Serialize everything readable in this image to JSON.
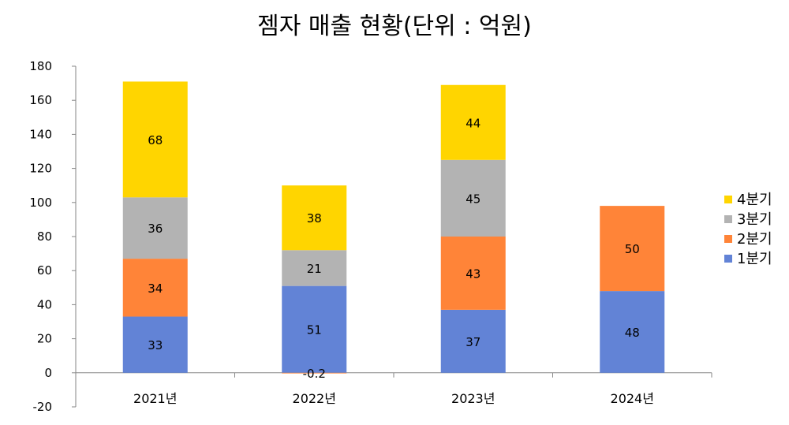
{
  "chart_data": {
    "type": "bar",
    "stacked": true,
    "title": "젬자 매출 현황(단위 : 억원)",
    "categories": [
      "2021년",
      "2022년",
      "2023년",
      "2024년"
    ],
    "series": [
      {
        "name": "1분기",
        "color": "#6283D6",
        "values": [
          33,
          51,
          37,
          48
        ]
      },
      {
        "name": "2분기",
        "color": "#FF8438",
        "values": [
          34,
          -0.2,
          43,
          50
        ]
      },
      {
        "name": "3분기",
        "color": "#B3B3B3",
        "values": [
          36,
          21,
          45,
          null
        ]
      },
      {
        "name": "4분기",
        "color": "#FFD500",
        "values": [
          68,
          38,
          44,
          null
        ]
      }
    ],
    "data_labels": [
      [
        "33",
        "51",
        "37",
        "48"
      ],
      [
        "34",
        "-0.2",
        "43",
        "50"
      ],
      [
        "36",
        "21",
        "45",
        ""
      ],
      [
        "68",
        "38",
        "44",
        ""
      ]
    ],
    "ylim": [
      -20,
      180
    ],
    "yticks": [
      "-20",
      "0",
      "20",
      "40",
      "60",
      "80",
      "100",
      "120",
      "140",
      "160",
      "180"
    ],
    "ytick_values": [
      -20,
      0,
      20,
      40,
      60,
      80,
      100,
      120,
      140,
      160,
      180
    ],
    "legend": {
      "position": "right",
      "order": [
        "4분기",
        "3분기",
        "2분기",
        "1분기"
      ]
    },
    "grid": false
  }
}
